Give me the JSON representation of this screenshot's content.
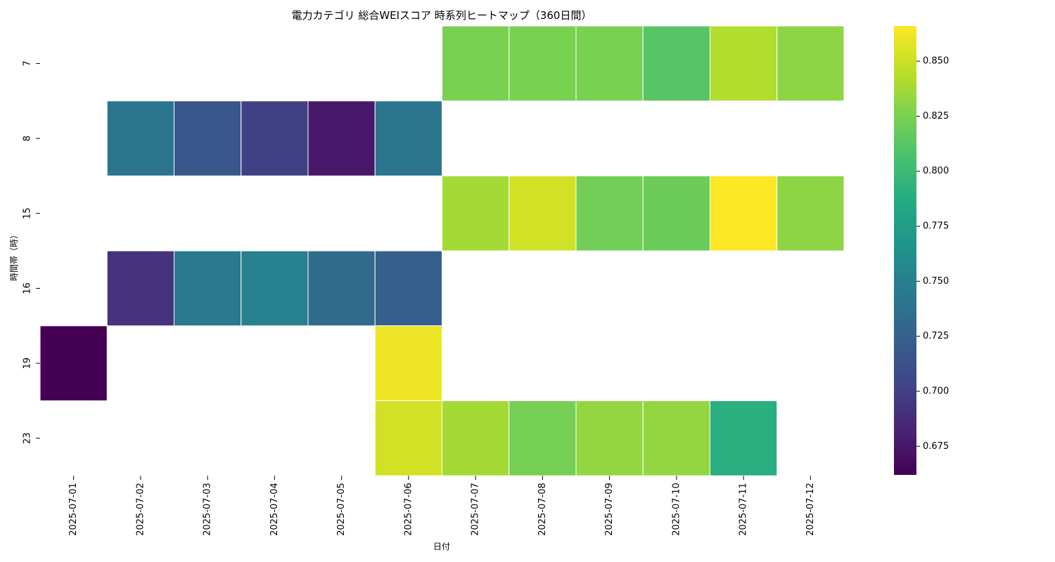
{
  "chart_data": {
    "type": "heatmap",
    "title": "電力カテゴリ 総合WEIスコア 時系列ヒートマップ（360日間）",
    "xlabel": "日付",
    "ylabel": "時間帯（時）",
    "x": [
      "2025-07-01",
      "2025-07-02",
      "2025-07-03",
      "2025-07-04",
      "2025-07-05",
      "2025-07-06",
      "2025-07-07",
      "2025-07-08",
      "2025-07-09",
      "2025-07-10",
      "2025-07-11",
      "2025-07-12"
    ],
    "y": [
      "7",
      "8",
      "15",
      "16",
      "19",
      "23"
    ],
    "values": [
      [
        null,
        null,
        null,
        null,
        null,
        null,
        0.825,
        0.825,
        0.825,
        0.812,
        0.842,
        0.831
      ],
      [
        null,
        0.742,
        0.717,
        0.7,
        0.675,
        0.742,
        null,
        null,
        null,
        null,
        null,
        null
      ],
      [
        null,
        null,
        null,
        null,
        null,
        null,
        0.838,
        0.852,
        0.822,
        0.82,
        0.866,
        0.831
      ],
      [
        null,
        0.692,
        0.745,
        0.75,
        0.733,
        0.723,
        null,
        null,
        null,
        null,
        null,
        null
      ],
      [
        0.662,
        null,
        null,
        null,
        null,
        0.861,
        null,
        null,
        null,
        null,
        null,
        null
      ],
      [
        null,
        null,
        null,
        null,
        null,
        0.852,
        0.838,
        0.823,
        0.833,
        0.833,
        0.789,
        null
      ]
    ],
    "colormap": "viridis",
    "vmin": 0.662,
    "vmax": 0.866,
    "colorbar_ticks": [
      0.675,
      0.7,
      0.725,
      0.75,
      0.775,
      0.8,
      0.825,
      0.85
    ],
    "colorbar_tick_labels": [
      "0.675",
      "0.700",
      "0.725",
      "0.750",
      "0.775",
      "0.800",
      "0.825",
      "0.850"
    ],
    "missing_color": "#ffffff",
    "grid": false,
    "legend": "colorbar-right"
  }
}
